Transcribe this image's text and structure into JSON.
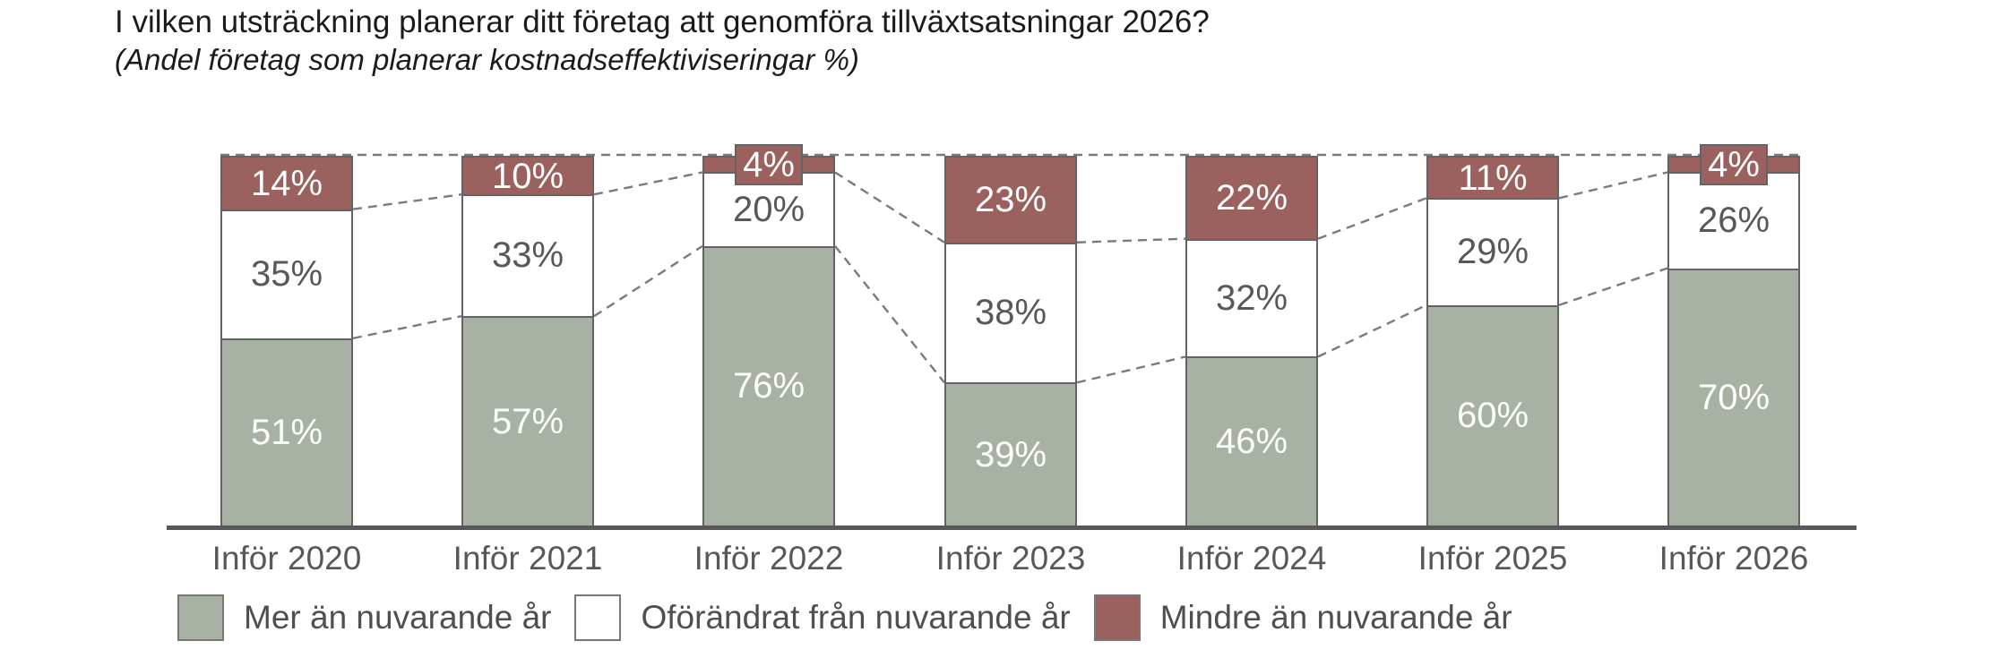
{
  "header": {
    "title": "I vilken utsträckning planerar ditt företag att genomföra tillväxtsatsningar 2026?",
    "subtitle": "(Andel företag som planerar kostnadseffektiviseringar %)"
  },
  "chart_data": {
    "type": "bar",
    "variant": "stacked-100-percent",
    "title": "I vilken utsträckning planerar ditt företag att genomföra tillväxtsatsningar 2026?",
    "subtitle": "(Andel företag som planerar kostnadseffektiviseringar %)",
    "unit": "%",
    "ylim": [
      0,
      100
    ],
    "grid": false,
    "legend_position": "bottom",
    "connector_lines": "dashed",
    "categories": [
      "Inför 2020",
      "Inför 2021",
      "Inför 2022",
      "Inför 2023",
      "Inför 2024",
      "Inför 2025",
      "Inför 2026"
    ],
    "series": [
      {
        "name": "Mer än nuvarande år",
        "color": "#A8B2A4",
        "label_color": "#FFFFFF",
        "values": [
          51,
          57,
          76,
          39,
          46,
          60,
          70
        ]
      },
      {
        "name": "Oförändrat från nuvarande år",
        "color": "#FFFFFF",
        "label_color": "#58585A",
        "values": [
          35,
          33,
          20,
          38,
          32,
          29,
          26
        ]
      },
      {
        "name": "Mindre än nuvarande år",
        "color": "#9B615F",
        "label_color": "#FFFFFF",
        "values": [
          14,
          10,
          4,
          23,
          22,
          11,
          4
        ]
      }
    ]
  },
  "colors": {
    "segment_border": "#636363",
    "axis": "#58585A",
    "dashed_connector": "#7A7A7A",
    "title_text": "#1B1B1B",
    "axis_text": "#57585A",
    "legend_text": "#4F4F4F"
  }
}
